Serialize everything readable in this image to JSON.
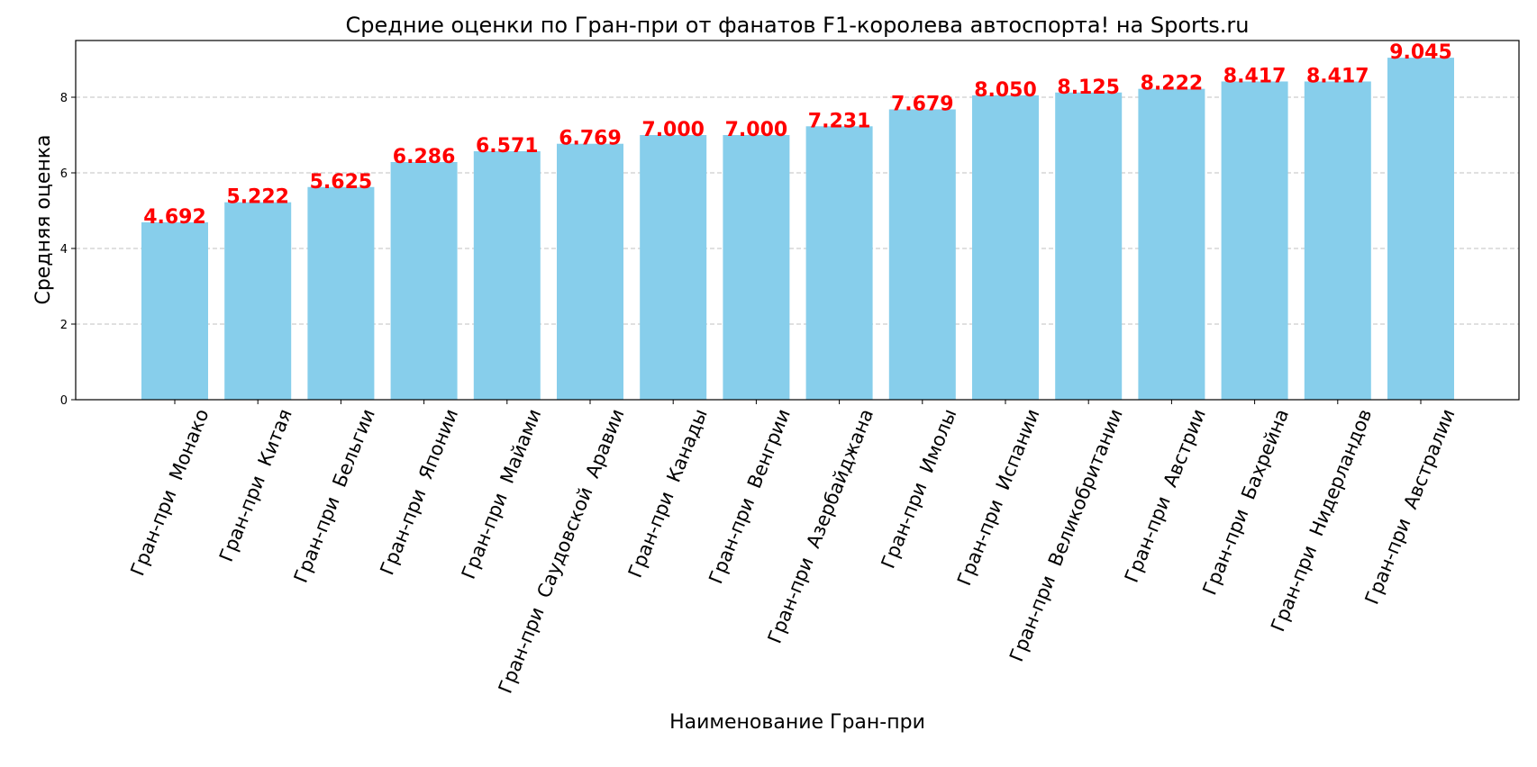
{
  "chart_data": {
    "type": "bar",
    "title": "Средние оценки по Гран-при от фанатов F1-королева автоспорта! на Sports.ru",
    "xlabel": "Наименование Гран-при",
    "ylabel": "Средняя оценка",
    "ylim": [
      0,
      9.5
    ],
    "yticks": [
      0,
      2,
      4,
      6,
      8
    ],
    "grid": "y-dashed",
    "categories": [
      "Гран-при  Монако",
      "Гран-при  Китая",
      "Гран-при  Бельгии",
      "Гран-при  Японии",
      "Гран-при  Майами",
      "Гран-при  Саудовской  Аравии",
      "Гран-при  Канады",
      "Гран-при  Венгрии",
      "Гран-при  Азербайджана",
      "Гран-при  Имолы",
      "Гран-при  Испании",
      "Гран-при  Великобритании",
      "Гран-при  Австрии",
      "Гран-при  Бахрейна",
      "Гран-при  Нидерландов",
      "Гран-при  Австралии"
    ],
    "values": [
      4.692,
      5.222,
      5.625,
      6.286,
      6.571,
      6.769,
      7.0,
      7.0,
      7.231,
      7.679,
      8.05,
      8.125,
      8.222,
      8.417,
      8.417,
      9.045
    ],
    "value_labels": [
      "4.692",
      "5.222",
      "5.625",
      "6.286",
      "6.571",
      "6.769",
      "7.000",
      "7.000",
      "7.231",
      "7.679",
      "8.050",
      "8.125",
      "8.222",
      "8.417",
      "8.417",
      "9.045"
    ],
    "colors": {
      "bar": "#87CEEB",
      "value_label": "#ff0000",
      "grid": "#c0c0c0",
      "axis": "#000000"
    }
  }
}
